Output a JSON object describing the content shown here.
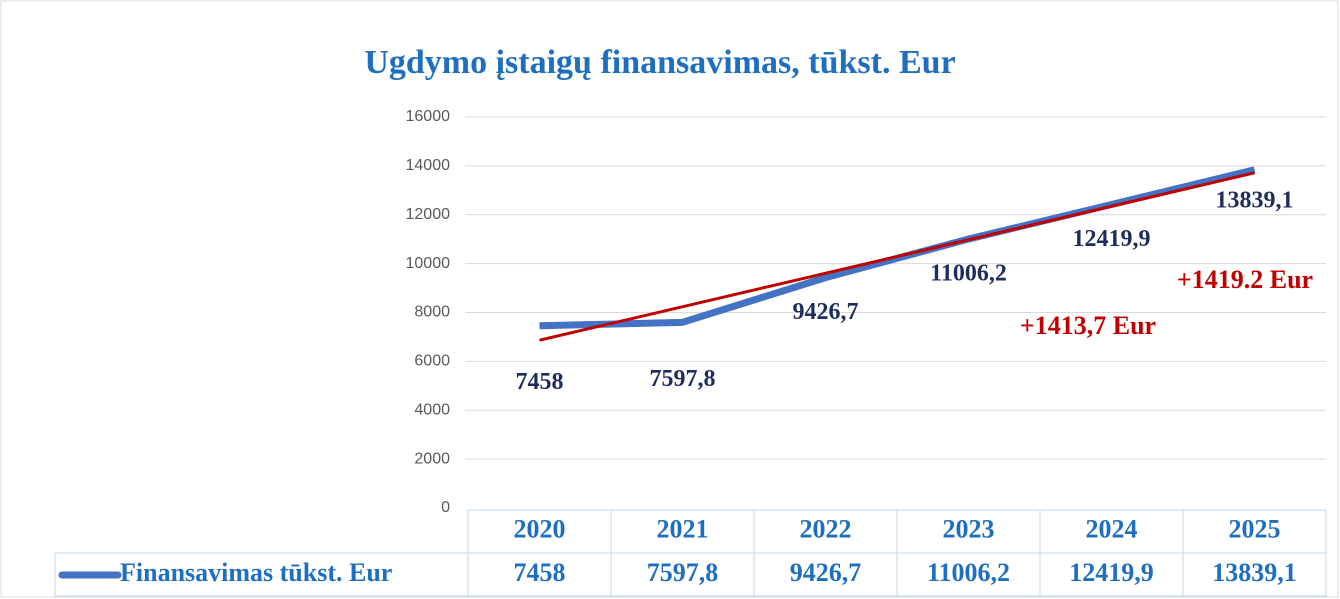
{
  "chart_data": {
    "type": "line",
    "title": "Ugdymo įstaigų finansavimas, tūkst. Eur",
    "categories": [
      "2020",
      "2021",
      "2022",
      "2023",
      "2024",
      "2025"
    ],
    "series": [
      {
        "name": "Finansavimas tūkst. Eur",
        "color": "#4472c4",
        "values": [
          7458,
          7597.8,
          9426.7,
          11006.2,
          12419.9,
          13839.1
        ],
        "value_labels": [
          "7458",
          "7597,8",
          "9426,7",
          "11006,2",
          "12419,9",
          "13839,1"
        ]
      }
    ],
    "trendline": {
      "color": "#c00000",
      "values": [
        6866,
        13716
      ]
    },
    "annotations": [
      "+1413,7 Eur",
      "+1419.2 Eur"
    ],
    "ylim": [
      0,
      16000
    ],
    "yticks": [
      0,
      2000,
      4000,
      6000,
      8000,
      10000,
      12000,
      14000,
      16000
    ],
    "grid": true,
    "data_table": true
  }
}
